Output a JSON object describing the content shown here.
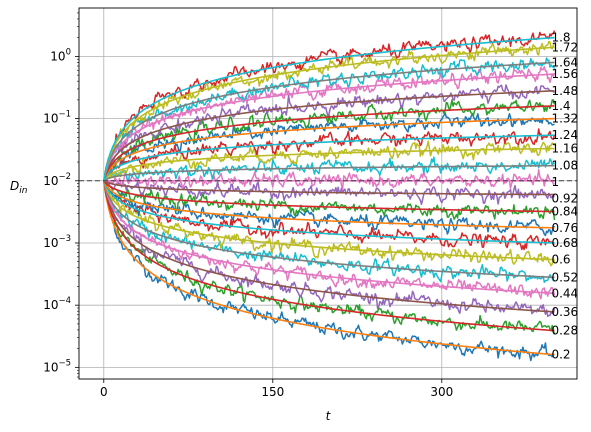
{
  "chart_data": {
    "type": "line",
    "title": "",
    "xlabel": "t",
    "ylabel_main": "D",
    "ylabel_sub": "in",
    "xlim": [
      -22,
      420
    ],
    "ylim": [
      6.5e-06,
      6
    ],
    "yscale": "log",
    "grid": true,
    "x_ticks": [
      0,
      150,
      300
    ],
    "x_tick_labels": [
      "0",
      "150",
      "300"
    ],
    "y_ticks": [
      1e-05,
      0.0001,
      0.001,
      0.01,
      0.1,
      1
    ],
    "y_tick_labels": [
      {
        "base": "10",
        "exp": "−5"
      },
      {
        "base": "10",
        "exp": "−4"
      },
      {
        "base": "10",
        "exp": "−3"
      },
      {
        "base": "10",
        "exp": "−2"
      },
      {
        "base": "10",
        "exp": "−1"
      },
      {
        "base": "10",
        "exp": "0"
      }
    ],
    "initial_value": 0.01,
    "t_end": 400,
    "reference_line": {
      "y": 0.01,
      "style": "dashed",
      "color": "#404040"
    },
    "exponents": [
      0.2,
      0.28,
      0.36,
      0.44,
      0.52,
      0.6,
      0.68,
      0.76,
      0.84,
      0.92,
      1,
      1.08,
      1.16,
      1.24,
      1.32,
      1.4,
      1.48,
      1.56,
      1.64,
      1.72,
      1.8
    ],
    "end_labels": [
      "0.2",
      "0.28",
      "0.36",
      "0.44",
      "0.52",
      "0.6",
      "0.68",
      "0.76",
      "0.84",
      "0.92",
      "1",
      "1.08",
      "1.16",
      "1.24",
      "1.32",
      "1.4",
      "1.48",
      "1.56",
      "1.64",
      "1.72",
      "1.8"
    ],
    "end_values": [
      1.6e-05,
      3.9e-05,
      7.8e-05,
      0.000155,
      0.00028,
      0.00054,
      0.001,
      0.00175,
      0.0032,
      0.006,
      0.01,
      0.0175,
      0.033,
      0.054,
      0.1,
      0.16,
      0.28,
      0.52,
      0.8,
      1.4,
      2.0
    ],
    "series_colors": [
      "#1f77b4",
      "#2ca02c",
      "#9467bd",
      "#e377c2",
      "#17becf",
      "#bcbd22",
      "#d62728"
    ],
    "fit_color_cycle": [
      "#ff7f0e",
      "#d62728",
      "#8c564b",
      "#e377c2",
      "#7f7f7f",
      "#bcbd22",
      "#17becf"
    ]
  }
}
